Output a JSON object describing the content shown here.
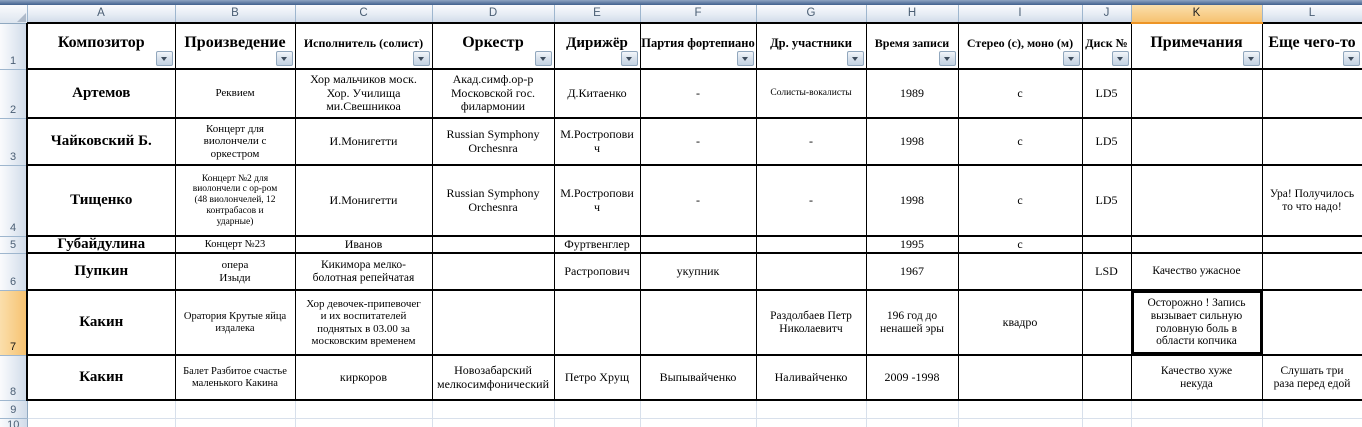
{
  "sheet": {
    "columns": [
      "A",
      "B",
      "C",
      "D",
      "E",
      "F",
      "G",
      "H",
      "I",
      "J",
      "K",
      "L"
    ],
    "row_numbers": [
      "1",
      "2",
      "3",
      "4",
      "5",
      "6",
      "7",
      "8",
      "9",
      "10"
    ],
    "selection": {
      "column": "K",
      "row": "7",
      "active_cell": "K7"
    },
    "header_row": [
      "Композитор",
      "Произведение",
      "Исполнитель (солист)",
      "Оркестр",
      "Дирижёр",
      "Партия фортепиано",
      "Др. участники",
      "Время записи",
      "Стерео (с), моно (м)",
      "Диск №",
      "Примечания",
      "Еще чего-то"
    ],
    "data_rows": [
      {
        "row": "2",
        "cells": [
          "Артемов",
          "Реквием",
          "Хор мальчиков моск.\nХор. Училища\nми.Свешникоа",
          "Акад.симф.ор-р\nМосковской гос.\nфилармонии",
          "Д.Китаенко",
          "-",
          "Солисты-вокалисты",
          "1989",
          "с",
          "LD5",
          "",
          ""
        ]
      },
      {
        "row": "3",
        "cells": [
          "Чайковский Б.",
          "Концерт для\nвиолончели с\nоркестром",
          "И.Монигетти",
          "Russian Symphony\nOrchesnra",
          "М.Ростропови\nч",
          "-",
          "-",
          "1998",
          "с",
          "LD5",
          "",
          ""
        ]
      },
      {
        "row": "4",
        "cells": [
          "Тищенко",
          "Концерт №2 для\nвиолончели с ор-ром\n(48 виолончелей, 12\nконтрабасов и\nударные)",
          "И.Монигетти",
          "Russian Symphony\nOrchesnra",
          "М.Ростропови\nч",
          "-",
          "-",
          "1998",
          "с",
          "LD5",
          "",
          "Ура! Получилось\nто что надо!"
        ]
      },
      {
        "row": "5",
        "cells": [
          "Губайдулина",
          "Концерт №23",
          "Иванов",
          "",
          "Фуртвенглер",
          "",
          "",
          "1995",
          "с",
          "",
          "",
          ""
        ]
      },
      {
        "row": "6",
        "cells": [
          "Пупкин",
          "опера\nИзыди",
          "Кикимора  мелко-\nболотная репейчатая",
          "",
          "Растропович",
          "укупник",
          "",
          "1967",
          "",
          "LSD",
          "Качество ужасное",
          ""
        ]
      },
      {
        "row": "7",
        "cells": [
          "Какин",
          "Оратория Крутые яйца\nиздалека",
          "Хор девочек-припевочег\nи их воспитателей\nподнятых в 03.00 за\nмосковским временем",
          "",
          "",
          "",
          "Раздолбаев Петр\nНиколаевитч",
          "196 год до\nненашей эры",
          "квадро",
          "",
          "Осторожно ! Запись\nвызывает сильную\nголовную боль в\nобласти копчика",
          ""
        ]
      },
      {
        "row": "8",
        "cells": [
          "Какин",
          "Балет Разбитое счастье\nмаленького Какина",
          "киркоров",
          "Новозабарский\nмелкосимфонический",
          "Петро Хрущ",
          "Выпывайченко",
          "Наливайченко",
          "2009 -1998",
          "",
          "",
          "Качество хуже\nнекуда",
          "Слушать три\nраза перед едой"
        ]
      }
    ],
    "icons": {
      "filter_button": "dropdown-arrow",
      "select_all": "corner-triangle",
      "l8_marker": "corner-triangle"
    },
    "colors": {
      "selection_highlight": "#F6C271",
      "selection_accent": "#ED9425",
      "table_border": "#000000",
      "gridline": "#D8E0EB",
      "header_text": "#4A5E74"
    }
  }
}
